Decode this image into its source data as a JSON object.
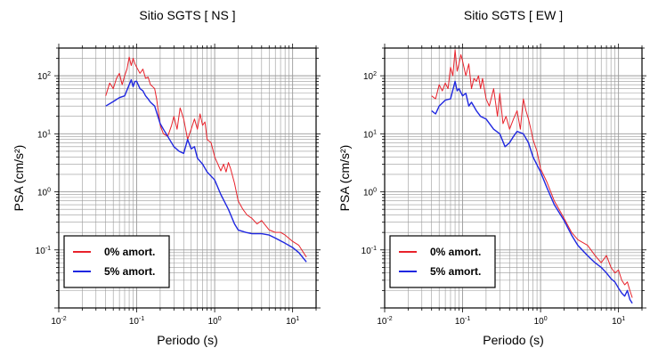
{
  "chart_data": [
    {
      "type": "line",
      "title": "Sitio SGTS [ NS ]",
      "xlabel": "Periodo (s)",
      "ylabel": "PSA (cm/s²)",
      "xscale": "log",
      "yscale": "log",
      "xlim": [
        0.01,
        20
      ],
      "ylim": [
        0.01,
        300
      ],
      "x_ticks": [
        {
          "value": 0.01,
          "base": "10",
          "exp": "-2"
        },
        {
          "value": 0.1,
          "base": "10",
          "exp": "-1"
        },
        {
          "value": 1,
          "base": "10",
          "exp": "0"
        },
        {
          "value": 10,
          "base": "10",
          "exp": "1"
        }
      ],
      "y_ticks": [
        {
          "value": 0.1,
          "base": "10",
          "exp": "-1"
        },
        {
          "value": 1,
          "base": "10",
          "exp": "0"
        },
        {
          "value": 10,
          "base": "10",
          "exp": "1"
        },
        {
          "value": 100,
          "base": "10",
          "exp": "2"
        }
      ],
      "grid": true,
      "legend_position": "bottom-left",
      "series": [
        {
          "name": "0% amort.",
          "color": "#e8222b",
          "x": [
            0.04,
            0.045,
            0.05,
            0.055,
            0.06,
            0.065,
            0.07,
            0.075,
            0.08,
            0.085,
            0.09,
            0.095,
            0.1,
            0.11,
            0.12,
            0.13,
            0.14,
            0.15,
            0.16,
            0.17,
            0.18,
            0.2,
            0.22,
            0.25,
            0.28,
            0.3,
            0.33,
            0.36,
            0.4,
            0.45,
            0.5,
            0.55,
            0.6,
            0.65,
            0.7,
            0.75,
            0.8,
            0.9,
            1.0,
            1.1,
            1.2,
            1.3,
            1.4,
            1.5,
            1.6,
            1.8,
            2.0,
            2.3,
            2.6,
            3.0,
            3.5,
            4.0,
            5.0,
            6.0,
            7.0,
            8.0,
            10.0,
            12.0,
            15.0
          ],
          "y": [
            45,
            75,
            60,
            90,
            110,
            70,
            100,
            130,
            210,
            150,
            200,
            160,
            140,
            110,
            130,
            90,
            95,
            70,
            65,
            60,
            40,
            14,
            10,
            9,
            14,
            20,
            12,
            28,
            18,
            8,
            12,
            18,
            12,
            22,
            14,
            16,
            8,
            7,
            4,
            3,
            2.3,
            3,
            2.2,
            3.2,
            2.5,
            1.4,
            0.7,
            0.5,
            0.4,
            0.35,
            0.28,
            0.32,
            0.22,
            0.2,
            0.2,
            0.18,
            0.14,
            0.12,
            0.075
          ]
        },
        {
          "name": "5% amort.",
          "color": "#1f27e0",
          "x": [
            0.04,
            0.05,
            0.06,
            0.07,
            0.08,
            0.085,
            0.09,
            0.095,
            0.1,
            0.11,
            0.12,
            0.13,
            0.14,
            0.15,
            0.17,
            0.2,
            0.22,
            0.25,
            0.3,
            0.35,
            0.4,
            0.45,
            0.5,
            0.55,
            0.6,
            0.7,
            0.8,
            1.0,
            1.2,
            1.5,
            1.8,
            2.0,
            2.5,
            3.0,
            4.0,
            5.0,
            6.0,
            8.0,
            10.0,
            12.0,
            15.0
          ],
          "y": [
            30,
            36,
            42,
            45,
            70,
            85,
            65,
            80,
            80,
            60,
            55,
            45,
            40,
            35,
            30,
            15,
            12,
            9,
            6,
            5,
            4.6,
            8,
            5.5,
            6,
            3.8,
            3,
            2.2,
            1.6,
            0.9,
            0.5,
            0.28,
            0.22,
            0.2,
            0.19,
            0.19,
            0.18,
            0.16,
            0.13,
            0.11,
            0.09,
            0.062
          ]
        }
      ]
    },
    {
      "type": "line",
      "title": "Sitio SGTS [ EW ]",
      "xlabel": "Periodo (s)",
      "ylabel": "PSA (cm/s²)",
      "xscale": "log",
      "yscale": "log",
      "xlim": [
        0.01,
        20
      ],
      "ylim": [
        0.01,
        300
      ],
      "x_ticks": [
        {
          "value": 0.01,
          "base": "10",
          "exp": "-2"
        },
        {
          "value": 0.1,
          "base": "10",
          "exp": "-1"
        },
        {
          "value": 1,
          "base": "10",
          "exp": "0"
        },
        {
          "value": 10,
          "base": "10",
          "exp": "1"
        }
      ],
      "y_ticks": [
        {
          "value": 0.1,
          "base": "10",
          "exp": "-1"
        },
        {
          "value": 1,
          "base": "10",
          "exp": "0"
        },
        {
          "value": 10,
          "base": "10",
          "exp": "1"
        },
        {
          "value": 100,
          "base": "10",
          "exp": "2"
        }
      ],
      "grid": true,
      "legend_position": "bottom-left",
      "series": [
        {
          "name": "0% amort.",
          "color": "#e8222b",
          "x": [
            0.04,
            0.045,
            0.05,
            0.055,
            0.06,
            0.065,
            0.07,
            0.075,
            0.08,
            0.085,
            0.09,
            0.095,
            0.1,
            0.11,
            0.12,
            0.13,
            0.14,
            0.15,
            0.16,
            0.17,
            0.18,
            0.2,
            0.22,
            0.25,
            0.28,
            0.3,
            0.33,
            0.36,
            0.4,
            0.45,
            0.5,
            0.55,
            0.6,
            0.65,
            0.7,
            0.75,
            0.8,
            0.9,
            1.0,
            1.2,
            1.5,
            2.0,
            2.5,
            3.0,
            4.0,
            5.0,
            6.0,
            7.0,
            8.0,
            9.0,
            10.0,
            11.0,
            12.0,
            13.0,
            14.0,
            15.0
          ],
          "y": [
            45,
            40,
            70,
            55,
            75,
            60,
            140,
            100,
            280,
            120,
            160,
            230,
            180,
            100,
            160,
            60,
            90,
            80,
            100,
            60,
            90,
            40,
            30,
            60,
            20,
            50,
            15,
            20,
            12,
            18,
            25,
            12,
            40,
            25,
            18,
            12,
            8,
            5,
            2.5,
            1.5,
            0.7,
            0.35,
            0.2,
            0.15,
            0.12,
            0.08,
            0.06,
            0.08,
            0.05,
            0.04,
            0.045,
            0.03,
            0.025,
            0.028,
            0.02,
            0.015
          ]
        },
        {
          "name": "5% amort.",
          "color": "#1f27e0",
          "x": [
            0.04,
            0.045,
            0.05,
            0.06,
            0.07,
            0.08,
            0.085,
            0.09,
            0.1,
            0.11,
            0.12,
            0.13,
            0.15,
            0.17,
            0.2,
            0.25,
            0.3,
            0.35,
            0.4,
            0.45,
            0.5,
            0.6,
            0.7,
            0.8,
            1.0,
            1.2,
            1.5,
            2.0,
            2.5,
            3.0,
            4.0,
            5.0,
            6.0,
            7.0,
            8.0,
            9.0,
            10.0,
            11.0,
            12.0,
            13.0,
            14.0,
            15.0
          ],
          "y": [
            25,
            22,
            30,
            38,
            40,
            80,
            55,
            60,
            45,
            50,
            30,
            35,
            25,
            20,
            18,
            12,
            10,
            6,
            7,
            9,
            11,
            10,
            7,
            4,
            2.2,
            1.2,
            0.6,
            0.32,
            0.18,
            0.12,
            0.08,
            0.06,
            0.05,
            0.04,
            0.032,
            0.028,
            0.022,
            0.018,
            0.016,
            0.02,
            0.014,
            0.012
          ]
        }
      ]
    }
  ]
}
